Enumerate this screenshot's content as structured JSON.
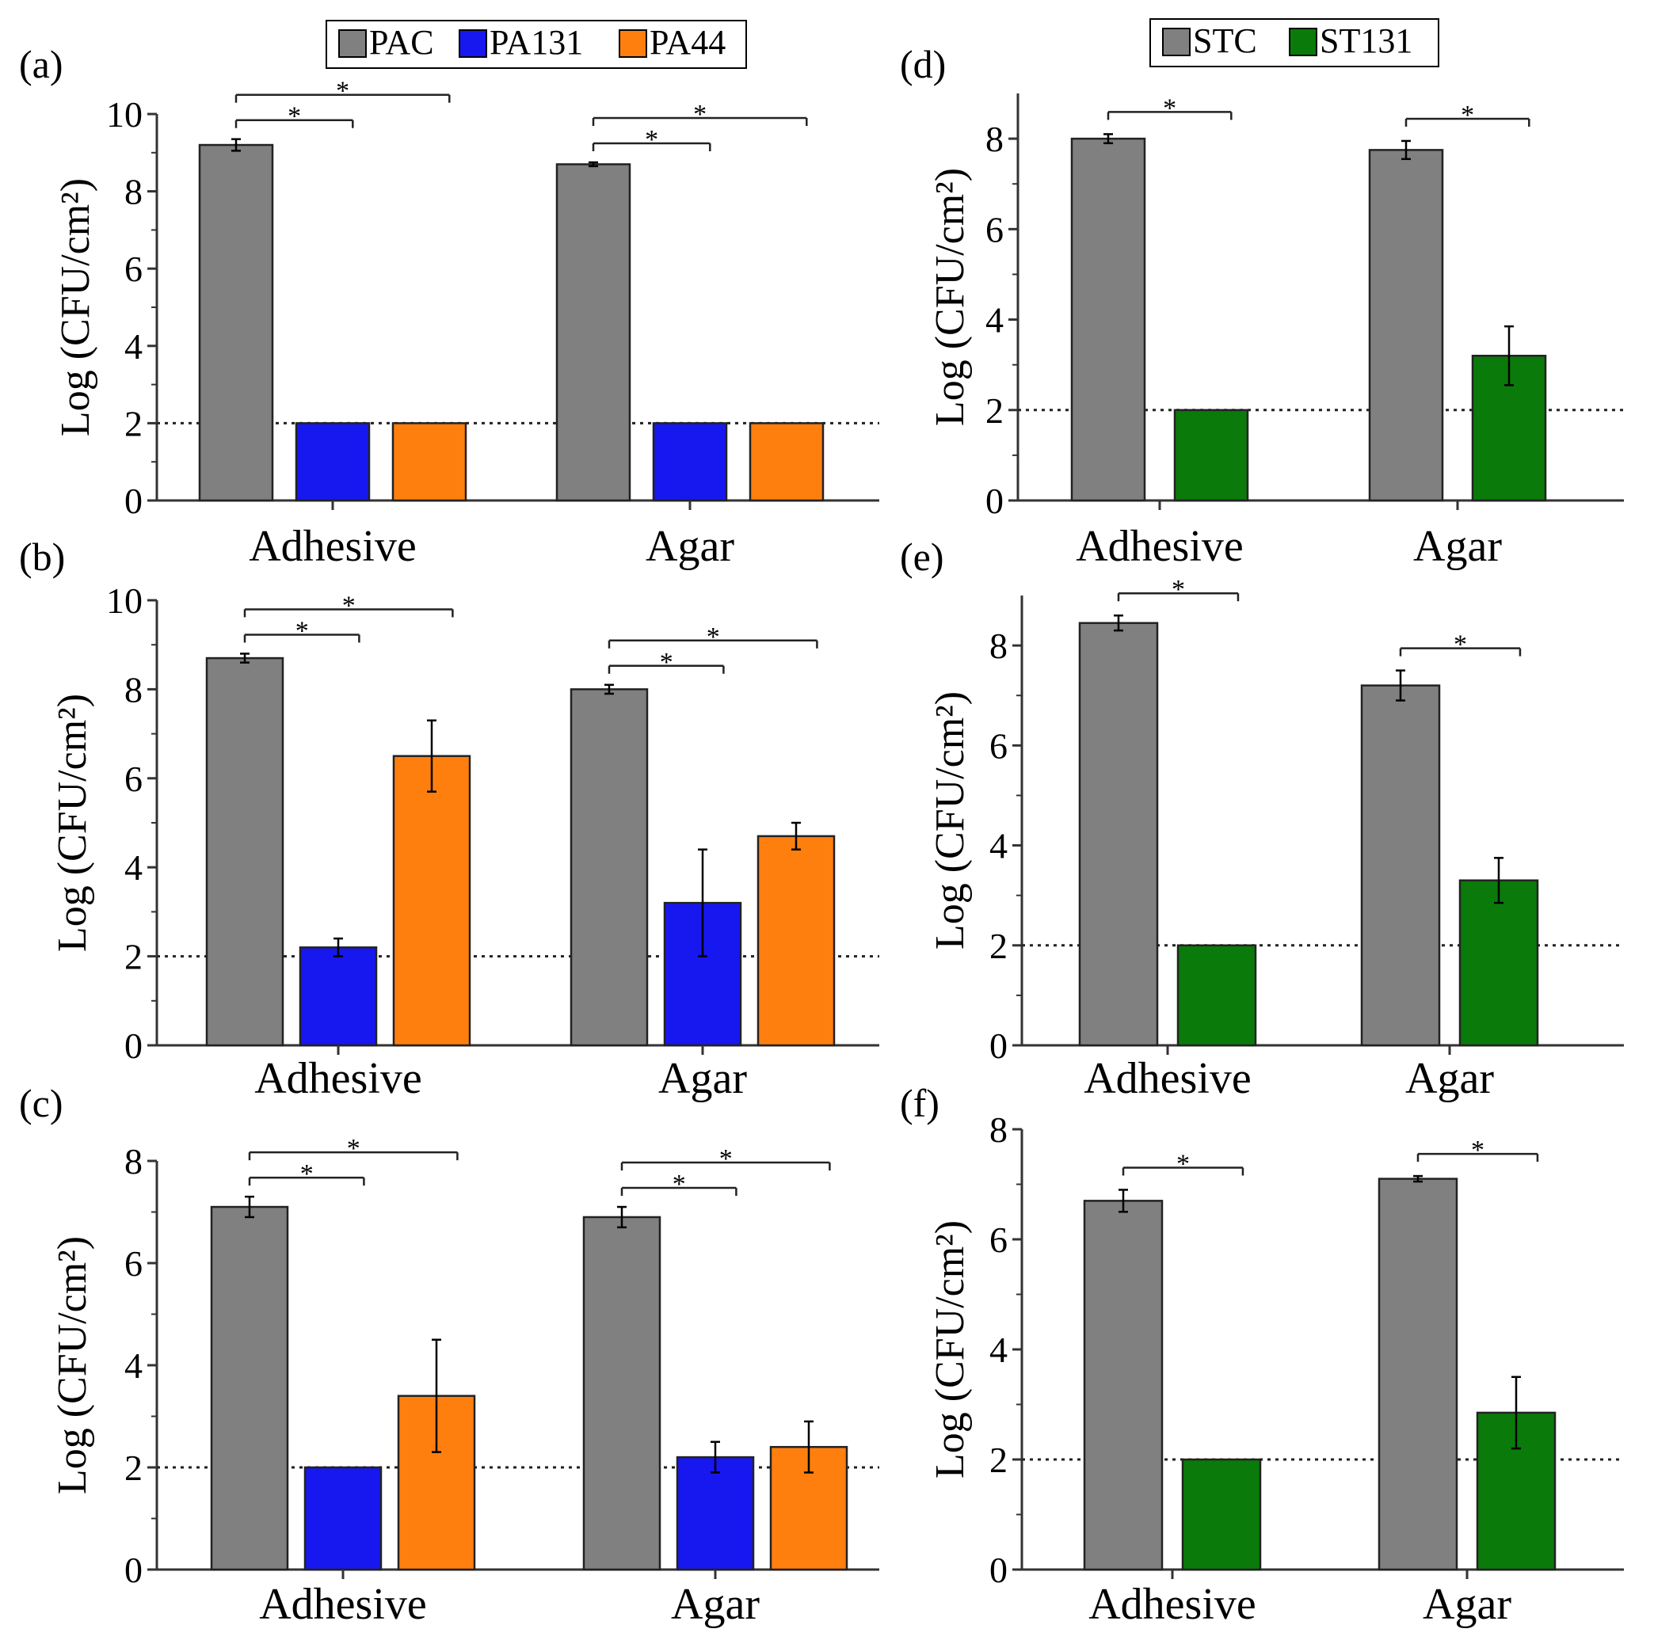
{
  "colors": {
    "PAC": "#808080",
    "PA131": "#1717f0",
    "PA44": "#ff7f0e",
    "STC": "#808080",
    "ST131": "#0a7a0a"
  },
  "legends": {
    "left": [
      "PAC",
      "PA131",
      "PA44"
    ],
    "right": [
      "STC",
      "ST131"
    ]
  },
  "chart_data": [
    {
      "type": "bar",
      "panel": "(a)",
      "ylabel": "Log (CFU/cm²)",
      "categories": [
        "Adhesive",
        "Agar"
      ],
      "ylim": [
        0,
        10
      ],
      "yticks": [
        0,
        2,
        4,
        6,
        8,
        10
      ],
      "reference_line": 2,
      "series": [
        {
          "name": "PAC",
          "values": [
            9.2,
            8.7
          ],
          "errors": [
            0.15,
            0.05
          ]
        },
        {
          "name": "PA131",
          "values": [
            2.0,
            2.0
          ],
          "errors": [
            0,
            0
          ]
        },
        {
          "name": "PA44",
          "values": [
            2.0,
            2.0
          ],
          "errors": [
            0,
            0
          ]
        }
      ],
      "significance": [
        {
          "category": 0,
          "from": 0,
          "to": 1,
          "label": "*"
        },
        {
          "category": 0,
          "from": 0,
          "to": 2,
          "label": "*"
        },
        {
          "category": 1,
          "from": 0,
          "to": 1,
          "label": "*"
        },
        {
          "category": 1,
          "from": 0,
          "to": 2,
          "label": "*"
        }
      ]
    },
    {
      "type": "bar",
      "panel": "(b)",
      "ylabel": "Log (CFU/cm²)",
      "categories": [
        "Adhesive",
        "Agar"
      ],
      "ylim": [
        0,
        10
      ],
      "yticks": [
        0,
        2,
        4,
        6,
        8,
        10
      ],
      "reference_line": 2,
      "series": [
        {
          "name": "PAC",
          "values": [
            8.7,
            8.0
          ],
          "errors": [
            0.1,
            0.1
          ]
        },
        {
          "name": "PA131",
          "values": [
            2.2,
            3.2
          ],
          "errors": [
            0.2,
            1.2
          ]
        },
        {
          "name": "PA44",
          "values": [
            6.5,
            4.7
          ],
          "errors": [
            0.8,
            0.3
          ]
        }
      ],
      "significance": [
        {
          "category": 0,
          "from": 0,
          "to": 1,
          "label": "*"
        },
        {
          "category": 0,
          "from": 0,
          "to": 2,
          "label": "*"
        },
        {
          "category": 1,
          "from": 0,
          "to": 1,
          "label": "*"
        },
        {
          "category": 1,
          "from": 0,
          "to": 2,
          "label": "*"
        }
      ]
    },
    {
      "type": "bar",
      "panel": "(c)",
      "ylabel": "Log (CFU/cm²)",
      "categories": [
        "Adhesive",
        "Agar"
      ],
      "ylim": [
        0,
        8
      ],
      "yticks": [
        0,
        2,
        4,
        6,
        8
      ],
      "reference_line": 2,
      "series": [
        {
          "name": "PAC",
          "values": [
            7.1,
            6.9
          ],
          "errors": [
            0.2,
            0.2
          ]
        },
        {
          "name": "PA131",
          "values": [
            2.0,
            2.2
          ],
          "errors": [
            0,
            0.3
          ]
        },
        {
          "name": "PA44",
          "values": [
            3.4,
            2.4
          ],
          "errors": [
            1.1,
            0.5
          ]
        }
      ],
      "significance": [
        {
          "category": 0,
          "from": 0,
          "to": 1,
          "label": "*"
        },
        {
          "category": 0,
          "from": 0,
          "to": 2,
          "label": "*"
        },
        {
          "category": 1,
          "from": 0,
          "to": 1,
          "label": "*"
        },
        {
          "category": 1,
          "from": 0,
          "to": 2,
          "label": "*"
        }
      ]
    },
    {
      "type": "bar",
      "panel": "(d)",
      "ylabel": "Log (CFU/cm²)",
      "categories": [
        "Adhesive",
        "Agar"
      ],
      "ylim": [
        0,
        9
      ],
      "yticks": [
        0,
        2,
        4,
        6,
        8
      ],
      "reference_line": 2,
      "series": [
        {
          "name": "STC",
          "values": [
            8.0,
            7.75
          ],
          "errors": [
            0.1,
            0.2
          ]
        },
        {
          "name": "ST131",
          "values": [
            2.0,
            3.2
          ],
          "errors": [
            0,
            0.65
          ]
        }
      ],
      "significance": [
        {
          "category": 0,
          "from": 0,
          "to": 1,
          "label": "*"
        },
        {
          "category": 1,
          "from": 0,
          "to": 1,
          "label": "*"
        }
      ]
    },
    {
      "type": "bar",
      "panel": "(e)",
      "ylabel": "Log (CFU/cm²)",
      "categories": [
        "Adhesive",
        "Agar"
      ],
      "ylim": [
        0,
        9
      ],
      "yticks": [
        0,
        2,
        4,
        6,
        8
      ],
      "reference_line": 2,
      "series": [
        {
          "name": "STC",
          "values": [
            8.45,
            7.2
          ],
          "errors": [
            0.15,
            0.3
          ]
        },
        {
          "name": "ST131",
          "values": [
            2.0,
            3.3
          ],
          "errors": [
            0,
            0.45
          ]
        }
      ],
      "significance": [
        {
          "category": 0,
          "from": 0,
          "to": 1,
          "label": "*"
        },
        {
          "category": 1,
          "from": 0,
          "to": 1,
          "label": "*"
        }
      ]
    },
    {
      "type": "bar",
      "panel": "(f)",
      "ylabel": "Log (CFU/cm²)",
      "categories": [
        "Adhesive",
        "Agar"
      ],
      "ylim": [
        0,
        8
      ],
      "yticks": [
        0,
        2,
        4,
        6,
        8
      ],
      "reference_line": 2,
      "series": [
        {
          "name": "STC",
          "values": [
            6.7,
            7.1
          ],
          "errors": [
            0.2,
            0.05
          ]
        },
        {
          "name": "ST131",
          "values": [
            2.0,
            2.85
          ],
          "errors": [
            0,
            0.65
          ]
        }
      ],
      "significance": [
        {
          "category": 0,
          "from": 0,
          "to": 1,
          "label": "*"
        },
        {
          "category": 1,
          "from": 0,
          "to": 1,
          "label": "*"
        }
      ]
    }
  ]
}
